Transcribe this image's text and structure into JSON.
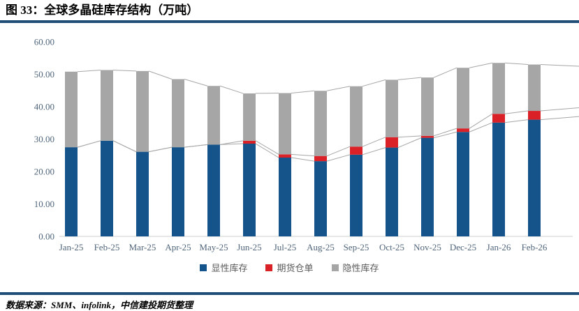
{
  "header": {
    "title": "图 33：全球多晶硅库存结构（万吨）"
  },
  "footer": {
    "source": "数据来源：SMM、infolink，中信建投期货整理"
  },
  "colors": {
    "explicit": "#14548a",
    "futures": "#da2128",
    "implicit": "#a6a6a6",
    "accent_line": "#1f4e79",
    "connector": "#a6a6a6",
    "axis_line": "#cfcfcf",
    "tick_text": "#50657a"
  },
  "chart_data": {
    "type": "bar",
    "stacked": true,
    "title": "全球多晶硅库存结构（万吨）",
    "categories": [
      "Jan-25",
      "Feb-25",
      "Mar-25",
      "Apr-25",
      "May-25",
      "Jun-25",
      "Jul-25",
      "Aug-25",
      "Sep-25",
      "Oct-25",
      "Nov-25",
      "Dec-25",
      "Jan-26",
      "Feb-26"
    ],
    "series": [
      {
        "name": "显性库存",
        "key": "explicit",
        "values": [
          27.5,
          29.5,
          26.1,
          27.5,
          28.3,
          28.6,
          24.3,
          23.2,
          25.2,
          27.4,
          30.4,
          32.2,
          35.1,
          36.0
        ]
      },
      {
        "name": "期货仓单",
        "key": "futures",
        "values": [
          0,
          0,
          0,
          0,
          0,
          0.9,
          1.0,
          1.6,
          2.5,
          3.2,
          0.6,
          1.1,
          2.7,
          2.7
        ]
      },
      {
        "name": "隐性库存",
        "key": "implicit",
        "values": [
          23.3,
          21.8,
          24.9,
          21.0,
          18.1,
          14.6,
          18.9,
          20.1,
          18.6,
          17.7,
          18.0,
          18.7,
          15.7,
          14.3
        ]
      }
    ],
    "totals": [
      50.8,
      51.3,
      51.0,
      48.5,
      46.4,
      44.1,
      44.2,
      44.9,
      46.3,
      48.3,
      49.0,
      52.0,
      53.5,
      53.0
    ],
    "ylim": [
      0,
      60
    ],
    "ytick_step": 10,
    "ytick_labels": [
      "0.00",
      "10.00",
      "20.00",
      "30.00",
      "40.00",
      "50.00",
      "60.00"
    ],
    "grid": false,
    "legend_position": "bottom",
    "series_lines": true
  }
}
